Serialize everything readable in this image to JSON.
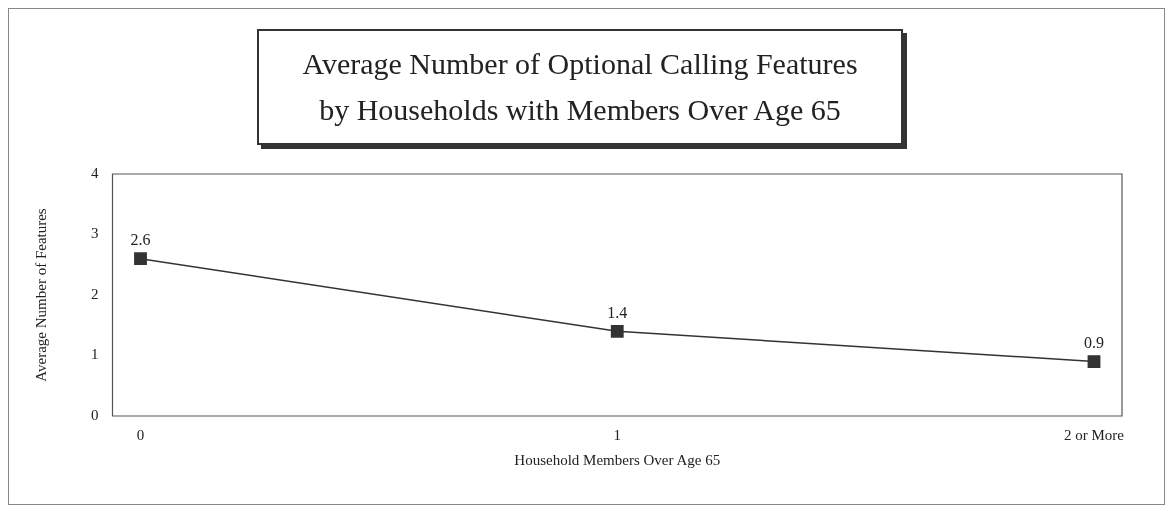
{
  "chart_data": {
    "type": "line",
    "title": "Average Number of Optional Calling Features by Households with Members Over Age 65",
    "xlabel": "Household Members Over Age 65",
    "ylabel": "Average Number of Features",
    "categories": [
      "0",
      "1",
      "2 or More"
    ],
    "series": [
      {
        "color": "#333333",
        "values": [
          2.6,
          1.4,
          0.9
        ]
      }
    ],
    "ylim": [
      0,
      4
    ],
    "yticks": [
      0,
      1,
      2,
      3,
      4
    ],
    "marker": "square",
    "line_style": "solid",
    "data_labels": true,
    "grid": false,
    "legend": false
  }
}
